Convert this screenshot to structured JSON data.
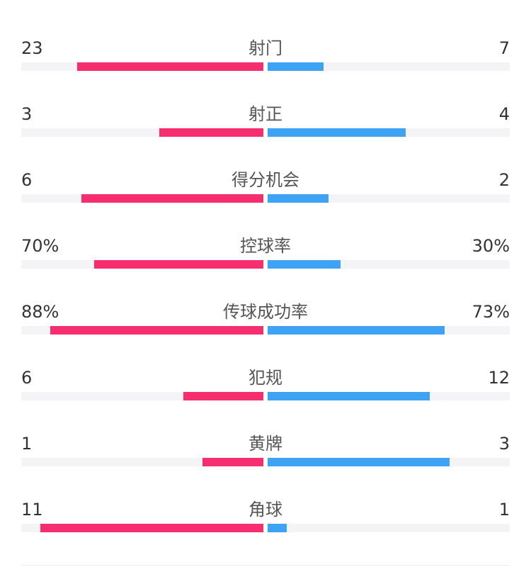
{
  "chart_data": {
    "type": "bar",
    "title": "",
    "categories": [
      "射门",
      "射正",
      "得分机会",
      "控球率",
      "传球成功率",
      "犯规",
      "黄牌",
      "角球"
    ],
    "series": [
      {
        "name": "",
        "labels": [
          "23",
          "3",
          "6",
          "70%",
          "88%",
          "6",
          "1",
          "11"
        ],
        "fill": [
          0.77,
          0.43,
          0.75,
          0.7,
          0.88,
          0.33,
          0.25,
          0.92
        ],
        "color": "#f62d6e"
      },
      {
        "name": "",
        "labels": [
          "7",
          "4",
          "2",
          "30%",
          "73%",
          "12",
          "3",
          "1"
        ],
        "fill": [
          0.23,
          0.57,
          0.25,
          0.3,
          0.73,
          0.67,
          0.75,
          0.08
        ],
        "color": "#3ea2f5"
      }
    ],
    "track_color": "#f4f4f6",
    "grid": false,
    "legend": "none"
  }
}
